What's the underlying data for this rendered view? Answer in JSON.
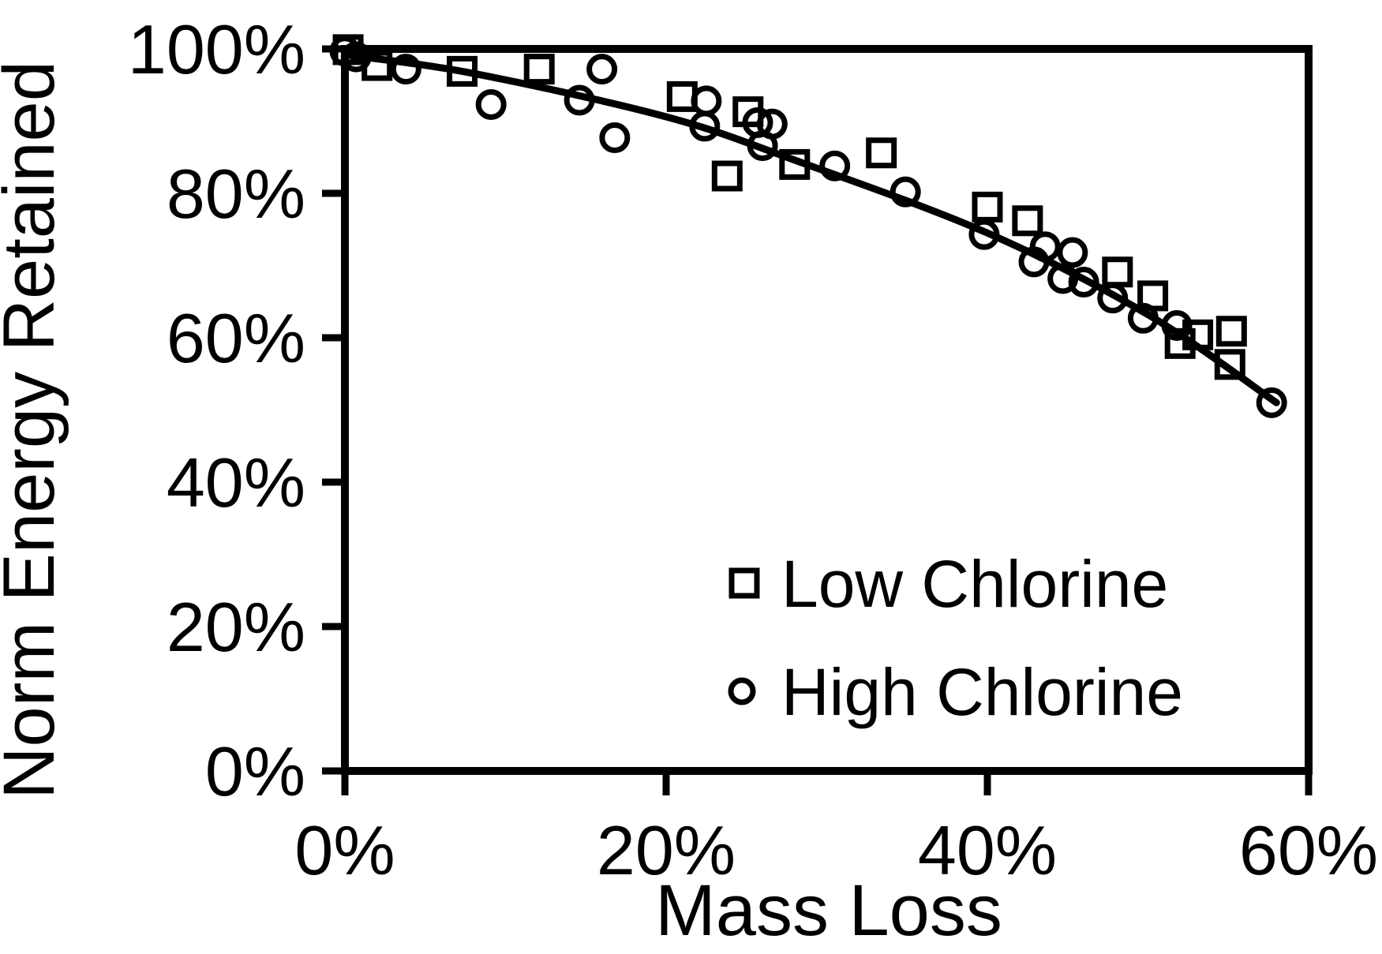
{
  "chart_data": {
    "type": "scatter",
    "title": "",
    "xlabel": "Mass Loss",
    "ylabel": "Norm Energy Retained",
    "xlim": [
      0,
      60
    ],
    "ylim": [
      0,
      100
    ],
    "x_tick_values": [
      0,
      20,
      40,
      60
    ],
    "x_tick_labels": [
      "0%",
      "20%",
      "40%",
      "60%"
    ],
    "y_tick_values": [
      0,
      20,
      40,
      60,
      80,
      100
    ],
    "y_tick_labels": [
      "0%",
      "20%",
      "40%",
      "60%",
      "80%",
      "100%"
    ],
    "grid": false,
    "legend_position": "inside-lower-right",
    "colors": {
      "foreground": "#000000",
      "background": "#ffffff"
    },
    "series": [
      {
        "name": "Low Chlorine",
        "marker": "square",
        "points": [
          [
            0.2,
            99.9
          ],
          [
            2.0,
            97.7
          ],
          [
            7.3,
            96.9
          ],
          [
            12.1,
            97.2
          ],
          [
            21.0,
            93.4
          ],
          [
            23.8,
            82.4
          ],
          [
            25.1,
            91.3
          ],
          [
            28.0,
            84.0
          ],
          [
            33.4,
            85.6
          ],
          [
            40.0,
            78.1
          ],
          [
            42.5,
            76.2
          ],
          [
            48.1,
            69.1
          ],
          [
            50.3,
            65.8
          ],
          [
            52.0,
            59.2
          ],
          [
            53.1,
            60.4
          ],
          [
            55.2,
            60.9
          ],
          [
            55.1,
            56.3
          ]
        ]
      },
      {
        "name": "High Chlorine",
        "marker": "circle",
        "points": [
          [
            0.0,
            99.7
          ],
          [
            0.7,
            98.9
          ],
          [
            3.8,
            97.2
          ],
          [
            9.1,
            92.3
          ],
          [
            14.6,
            92.9
          ],
          [
            16.0,
            97.2
          ],
          [
            16.8,
            87.7
          ],
          [
            22.4,
            89.3
          ],
          [
            22.5,
            92.8
          ],
          [
            25.7,
            89.8
          ],
          [
            26.6,
            89.6
          ],
          [
            26.0,
            86.6
          ],
          [
            30.5,
            83.8
          ],
          [
            34.9,
            80.2
          ],
          [
            39.8,
            74.3
          ],
          [
            42.9,
            70.5
          ],
          [
            43.6,
            72.6
          ],
          [
            45.3,
            71.8
          ],
          [
            44.7,
            68.2
          ],
          [
            46.0,
            67.7
          ],
          [
            47.8,
            65.5
          ],
          [
            49.7,
            62.7
          ],
          [
            51.8,
            61.7
          ],
          [
            57.7,
            51.0
          ]
        ]
      }
    ],
    "trend_line": {
      "points": [
        [
          0,
          99.2
        ],
        [
          8,
          96.6
        ],
        [
          20,
          90.6
        ],
        [
          28,
          84.6
        ],
        [
          40,
          74.5
        ],
        [
          50,
          63.2
        ],
        [
          58,
          51.0
        ]
      ]
    }
  }
}
